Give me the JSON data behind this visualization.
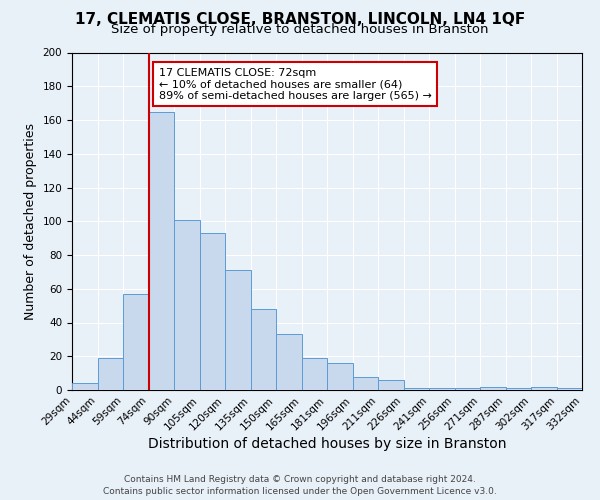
{
  "title": "17, CLEMATIS CLOSE, BRANSTON, LINCOLN, LN4 1QF",
  "subtitle": "Size of property relative to detached houses in Branston",
  "xlabel": "Distribution of detached houses by size in Branston",
  "ylabel": "Number of detached properties",
  "bar_color": "#c8d9ee",
  "bar_edge_color": "#5b9bd5",
  "bin_labels": [
    "29sqm",
    "44sqm",
    "59sqm",
    "74sqm",
    "90sqm",
    "105sqm",
    "120sqm",
    "135sqm",
    "150sqm",
    "165sqm",
    "181sqm",
    "196sqm",
    "211sqm",
    "226sqm",
    "241sqm",
    "256sqm",
    "271sqm",
    "287sqm",
    "302sqm",
    "317sqm",
    "332sqm"
  ],
  "bar_heights": [
    4,
    19,
    57,
    165,
    101,
    93,
    71,
    48,
    33,
    19,
    16,
    8,
    6,
    1,
    1,
    1,
    2,
    1,
    2,
    1
  ],
  "ylim": [
    0,
    200
  ],
  "yticks": [
    0,
    20,
    40,
    60,
    80,
    100,
    120,
    140,
    160,
    180,
    200
  ],
  "vline_color": "#cc0000",
  "annotation_title": "17 CLEMATIS CLOSE: 72sqm",
  "annotation_line1": "← 10% of detached houses are smaller (64)",
  "annotation_line2": "89% of semi-detached houses are larger (565) →",
  "annotation_box_color": "#ffffff",
  "annotation_box_edge": "#cc0000",
  "footer1": "Contains HM Land Registry data © Crown copyright and database right 2024.",
  "footer2": "Contains public sector information licensed under the Open Government Licence v3.0.",
  "bg_color": "#e8f0f8",
  "grid_color": "#ffffff",
  "title_fontsize": 11,
  "subtitle_fontsize": 9.5,
  "xlabel_fontsize": 10,
  "ylabel_fontsize": 9,
  "tick_fontsize": 7.5,
  "annotation_fontsize": 8,
  "footer_fontsize": 6.5
}
